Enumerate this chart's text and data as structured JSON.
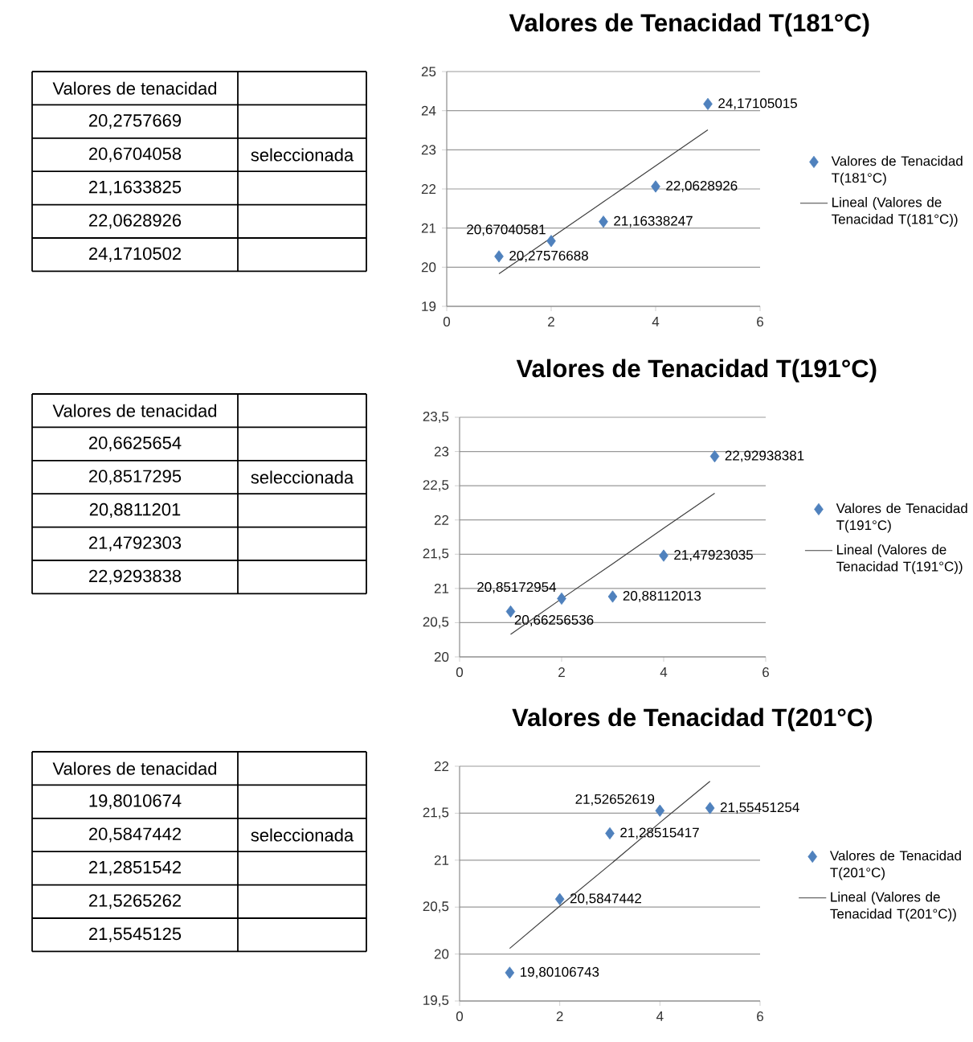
{
  "chart_data": [
    {
      "type": "other",
      "cell_labels": [
        [
          "Valores de tenacidad",
          null
        ],
        [
          "20,2757669",
          null
        ],
        [
          "20,6704058",
          "seleccionada"
        ],
        [
          "21,1633825",
          null
        ],
        [
          "22,0628926",
          null
        ],
        [
          "24,1710502",
          null
        ]
      ]
    },
    {
      "type": "scatter",
      "title": "Valores de Tenacidad T(181°C)",
      "x": [
        1,
        2,
        3,
        4,
        5
      ],
      "xlim": [
        0,
        6
      ],
      "xticks": [
        0,
        2,
        4,
        6
      ],
      "ylim": [
        19,
        25
      ],
      "yticks": [
        19,
        20,
        21,
        22,
        23,
        24,
        25
      ],
      "grid": "y",
      "legend": "right",
      "series": [
        {
          "name": "Valores de Tenacidad T(181°C)",
          "marker": "diamond",
          "color": "#4f81bd",
          "values": [
            20.27576688,
            20.67040581,
            21.16338247,
            22.0628926,
            24.17105015
          ],
          "value_labels": [
            "20,27576688",
            "20,67040581",
            "21,16338247",
            "22,0628926",
            "24,17105015"
          ]
        },
        {
          "name": "Lineal (Valores de Tenacidad T(181°C))",
          "type": "line",
          "color": "#404040",
          "values": [
            19.83,
            20.75,
            21.67,
            22.59,
            23.51
          ]
        }
      ]
    },
    {
      "type": "other",
      "cell_labels": [
        [
          "Valores de tenacidad",
          null
        ],
        [
          "20,6625654",
          null
        ],
        [
          "20,8517295",
          "seleccionada"
        ],
        [
          "20,8811201",
          null
        ],
        [
          "21,4792303",
          null
        ],
        [
          "22,9293838",
          null
        ]
      ]
    },
    {
      "type": "scatter",
      "title": "Valores de Tenacidad T(191°C)",
      "x": [
        1,
        2,
        3,
        4,
        5
      ],
      "xlim": [
        0,
        6
      ],
      "xticks": [
        0,
        2,
        4,
        6
      ],
      "ylim": [
        20,
        23.5
      ],
      "yticks": [
        20,
        {
          "value": 20.5,
          "label": "20,5"
        },
        21,
        {
          "value": 21.5,
          "label": "21,5"
        },
        22,
        {
          "value": 22.5,
          "label": "22,5"
        },
        23,
        {
          "value": 23.5,
          "label": "23,5"
        }
      ],
      "grid": "y",
      "legend": "right",
      "series": [
        {
          "name": "Valores de Tenacidad T(191°C)",
          "marker": "diamond",
          "color": "#4f81bd",
          "values": [
            20.66256536,
            20.85172954,
            20.88112013,
            21.47923035,
            22.92938381
          ],
          "value_labels": [
            "20,66256536",
            "20,85172954",
            "20,88112013",
            "21,47923035",
            "22,92938381"
          ]
        },
        {
          "name": "Lineal (Valores de Tenacidad T(191°C))",
          "type": "line",
          "color": "#404040",
          "values": [
            20.33,
            20.85,
            21.36,
            21.88,
            22.39
          ]
        }
      ]
    },
    {
      "type": "other",
      "cell_labels": [
        [
          "Valores de tenacidad",
          null
        ],
        [
          "19,8010674",
          null
        ],
        [
          "20,5847442",
          "seleccionada"
        ],
        [
          "21,2851542",
          null
        ],
        [
          "21,5265262",
          null
        ],
        [
          "21,5545125",
          null
        ]
      ]
    },
    {
      "type": "scatter",
      "title": "Valores de Tenacidad T(201°C)",
      "x": [
        1,
        2,
        3,
        4,
        5
      ],
      "xlim": [
        0,
        6
      ],
      "xticks": [
        0,
        2,
        4,
        6
      ],
      "ylim": [
        19.5,
        22
      ],
      "yticks": [
        {
          "value": 19.5,
          "label": "19,5"
        },
        20,
        {
          "value": 20.5,
          "label": "20,5"
        },
        21,
        {
          "value": 21.5,
          "label": "21,5"
        },
        22
      ],
      "grid": "y",
      "legend": "right",
      "series": [
        {
          "name": "Valores de Tenacidad T(201°C)",
          "marker": "diamond",
          "color": "#4f81bd",
          "values": [
            19.80106743,
            20.5847442,
            21.28515417,
            21.52652619,
            21.55451254
          ],
          "value_labels": [
            "19,80106743",
            "20,5847442",
            "21,28515417",
            "21,52652619",
            "21,55451254"
          ]
        },
        {
          "name": "Lineal (Valores de Tenacidad T(201°C))",
          "type": "line",
          "color": "#404040",
          "values": [
            20.06,
            20.51,
            20.95,
            21.4,
            21.84
          ]
        }
      ]
    }
  ]
}
